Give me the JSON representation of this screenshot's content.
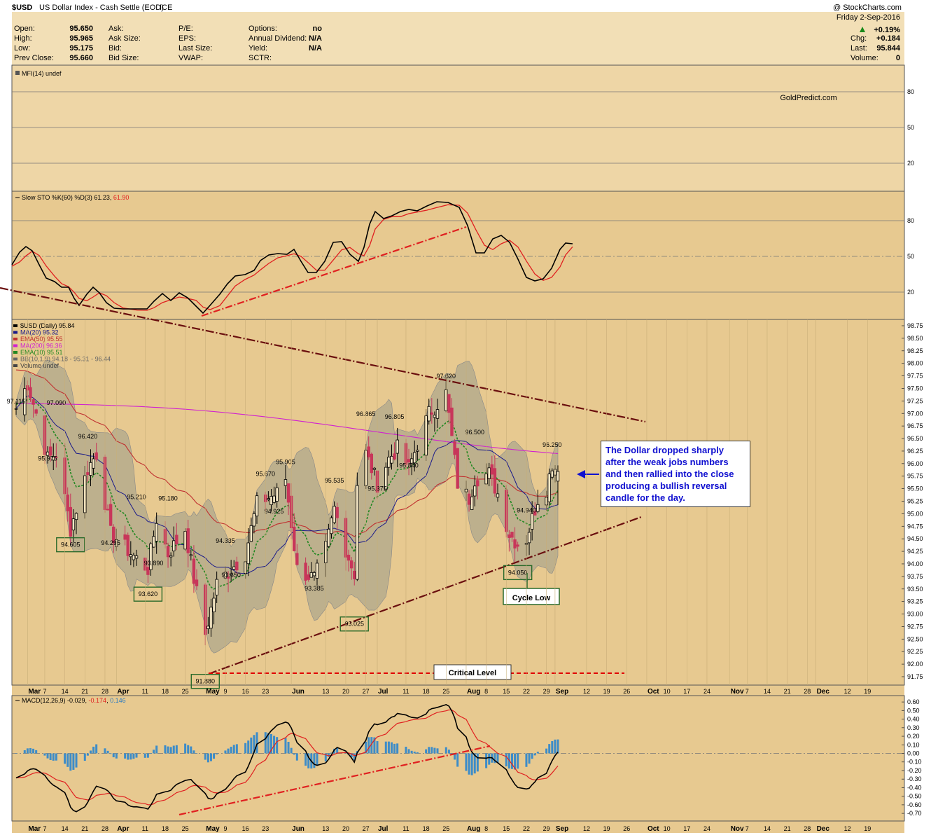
{
  "header": {
    "symbol": "$USD",
    "description": "US Dollar Index - Cash Settle (EOD)",
    "exchange": "ICE",
    "date": "Friday  2-Sep-2016",
    "change_pct": "+0.19%",
    "source": "@ StockCharts.com",
    "watermark": "GoldPredict.com",
    "fields": [
      {
        "label": "Open:",
        "value": "95.650"
      },
      {
        "label": "High:",
        "value": "95.965"
      },
      {
        "label": "Low:",
        "value": "95.175"
      },
      {
        "label": "Prev Close:",
        "value": "95.660"
      },
      {
        "label": "Ask:",
        "value": ""
      },
      {
        "label": "Ask Size:",
        "value": ""
      },
      {
        "label": "Bid:",
        "value": ""
      },
      {
        "label": "Bid Size:",
        "value": ""
      },
      {
        "label": "P/E:",
        "value": ""
      },
      {
        "label": "EPS:",
        "value": ""
      },
      {
        "label": "Last Size:",
        "value": ""
      },
      {
        "label": "VWAP:",
        "value": ""
      },
      {
        "label": "Options:",
        "value": "no"
      },
      {
        "label": "Annual Dividend:",
        "value": "N/A"
      },
      {
        "label": "Yield:",
        "value": "N/A"
      },
      {
        "label": "SCTR:",
        "value": ""
      }
    ],
    "right_fields": [
      {
        "label": "Chg:",
        "value": "+0.184"
      },
      {
        "label": "Last:",
        "value": "95.844"
      },
      {
        "label": "Volume:",
        "value": "0"
      }
    ]
  },
  "panels": {
    "mfi": {
      "label": "MFI(14) undef",
      "ticks": [
        "80",
        "50",
        "20"
      ]
    },
    "sto": {
      "label_prefix": "Slow STO %K(60) %D(3) 61.23, ",
      "label_d": "61.90",
      "ticks": [
        "80",
        "50",
        "20"
      ]
    },
    "price": {
      "legend": [
        {
          "text": "$USD (Daily) 95.84",
          "color": "#000000"
        },
        {
          "text": "MA(20) 95.32",
          "color": "#1a1a8a"
        },
        {
          "text": "EMA(50) 95.55",
          "color": "#c03030"
        },
        {
          "text": "MA(200) 96.36",
          "color": "#d020d0"
        },
        {
          "text": "EMA(10) 95.51",
          "color": "#228822"
        },
        {
          "text": "BB(10,1.9) 94.18 - 95.31 - 96.44",
          "color": "#666666"
        },
        {
          "text": "Volume undef",
          "color": "#444444"
        }
      ],
      "ticks": [
        "98.75",
        "98.50",
        "98.25",
        "98.00",
        "97.75",
        "97.50",
        "97.25",
        "97.00",
        "96.75",
        "96.50",
        "96.25",
        "96.00",
        "95.75",
        "95.50",
        "95.25",
        "95.00",
        "94.75",
        "94.50",
        "94.25",
        "94.00",
        "93.75",
        "93.50",
        "93.25",
        "93.00",
        "92.75",
        "92.50",
        "92.25",
        "92.00",
        "91.75"
      ]
    },
    "macd": {
      "label_prefix": "MACD(12,26,9) -0.029, ",
      "label_signal": "-0.174",
      "label_sep": ", ",
      "label_hist": "0.146",
      "ticks": [
        "0.60",
        "0.50",
        "0.40",
        "0.30",
        "0.20",
        "0.10",
        "0.00",
        "-0.10",
        "-0.20",
        "-0.30",
        "-0.40",
        "-0.50",
        "-0.60",
        "-0.70"
      ]
    }
  },
  "xaxis": {
    "labels": [
      {
        "t": "Mar",
        "b": true
      },
      {
        "t": "7"
      },
      {
        "t": "14"
      },
      {
        "t": "21"
      },
      {
        "t": "28"
      },
      {
        "t": "Apr",
        "b": true
      },
      {
        "t": "11"
      },
      {
        "t": "18"
      },
      {
        "t": "25"
      },
      {
        "t": "May",
        "b": true
      },
      {
        "t": "9"
      },
      {
        "t": "16"
      },
      {
        "t": "23"
      },
      {
        "t": "Jun",
        "b": true
      },
      {
        "t": "13"
      },
      {
        "t": "20"
      },
      {
        "t": "27"
      },
      {
        "t": "Jul",
        "b": true
      },
      {
        "t": "11"
      },
      {
        "t": "18"
      },
      {
        "t": "25"
      },
      {
        "t": "Aug",
        "b": true
      },
      {
        "t": "8"
      },
      {
        "t": "15"
      },
      {
        "t": "22"
      },
      {
        "t": "29"
      },
      {
        "t": "Sep",
        "b": true
      },
      {
        "t": "12"
      },
      {
        "t": "19"
      },
      {
        "t": "26"
      },
      {
        "t": "Oct",
        "b": true
      },
      {
        "t": "10"
      },
      {
        "t": "17"
      },
      {
        "t": "24"
      },
      {
        "t": "Nov",
        "b": true
      },
      {
        "t": "7"
      },
      {
        "t": "14"
      },
      {
        "t": "21"
      },
      {
        "t": "28"
      },
      {
        "t": "Dec",
        "b": true
      },
      {
        "t": "12"
      },
      {
        "t": "19"
      }
    ]
  },
  "annotations": {
    "note": "The Dollar dropped sharply after the weak jobs numbers and then rallied into the close producing a bullish reversal candle for the day.",
    "critical": "Critical Level",
    "cycle_low": "Cycle Low"
  },
  "chart_data": {
    "type": "candlestick",
    "title": "$USD US Dollar Index - Cash Settle (EOD) ICE",
    "date_range": [
      "2016-02-26",
      "2016-09-02"
    ],
    "ylim": [
      91.6,
      98.9
    ],
    "price_labels": [
      {
        "date": "2016-02-26",
        "value": 97.115,
        "boxed": false
      },
      {
        "date": "2016-03-08",
        "value": 95.975,
        "boxed": false
      },
      {
        "date": "2016-03-11",
        "value": 97.09,
        "boxed": false
      },
      {
        "date": "2016-03-16",
        "value": 94.605,
        "boxed": true
      },
      {
        "date": "2016-03-22",
        "value": 96.42,
        "boxed": false
      },
      {
        "date": "2016-03-30",
        "value": 94.295,
        "boxed": false
      },
      {
        "date": "2016-04-08",
        "value": 95.21,
        "boxed": false
      },
      {
        "date": "2016-04-12",
        "value": 93.62,
        "boxed": true
      },
      {
        "date": "2016-04-14",
        "value": 93.89,
        "boxed": false
      },
      {
        "date": "2016-04-19",
        "value": 95.18,
        "boxed": false
      },
      {
        "date": "2016-05-02",
        "value": 91.88,
        "boxed": true
      },
      {
        "date": "2016-05-09",
        "value": 94.335,
        "boxed": false
      },
      {
        "date": "2016-05-11",
        "value": 93.65,
        "boxed": false
      },
      {
        "date": "2016-05-23",
        "value": 95.67,
        "boxed": false
      },
      {
        "date": "2016-05-26",
        "value": 94.925,
        "boxed": false
      },
      {
        "date": "2016-05-30",
        "value": 95.905,
        "boxed": false
      },
      {
        "date": "2016-06-09",
        "value": 93.385,
        "boxed": false
      },
      {
        "date": "2016-06-16",
        "value": 95.535,
        "boxed": false
      },
      {
        "date": "2016-06-23",
        "value": 93.025,
        "boxed": true
      },
      {
        "date": "2016-06-27",
        "value": 96.865,
        "boxed": false
      },
      {
        "date": "2016-07-01",
        "value": 95.375,
        "boxed": false
      },
      {
        "date": "2016-07-07",
        "value": 96.805,
        "boxed": false
      },
      {
        "date": "2016-07-12",
        "value": 95.84,
        "boxed": false
      },
      {
        "date": "2016-07-25",
        "value": 97.62,
        "boxed": false
      },
      {
        "date": "2016-08-04",
        "value": 96.5,
        "boxed": false
      },
      {
        "date": "2016-08-19",
        "value": 94.05,
        "boxed": true
      },
      {
        "date": "2016-08-22",
        "value": 94.94,
        "boxed": false
      },
      {
        "date": "2016-08-31",
        "value": 96.25,
        "boxed": false
      }
    ],
    "critical_level": 91.88,
    "sto_k_last": 61.23,
    "sto_d_last": 61.9,
    "macd_last": -0.029,
    "macd_signal_last": -0.174,
    "macd_hist_last": 0.146,
    "colors": {
      "up": "#000000",
      "down": "#c8365a",
      "bg": "#e7c990",
      "panel_bg": "#ebd6aa",
      "trend": "#6a0e0e",
      "red": "#ff1010"
    }
  }
}
